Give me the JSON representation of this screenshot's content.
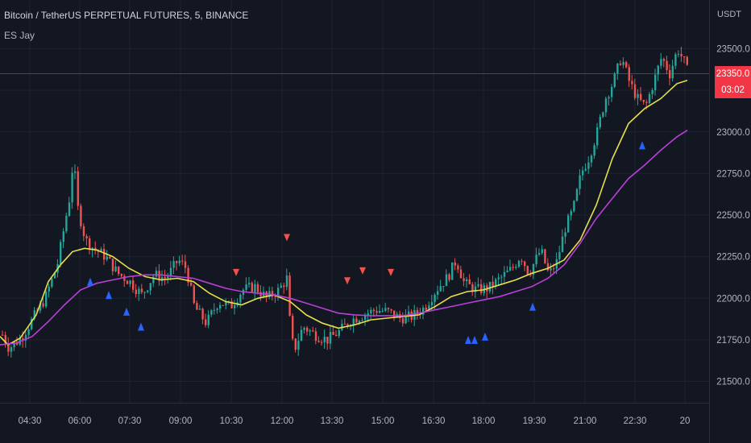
{
  "header": {
    "symbol_line": "Bitcoin / TetherUS PERPETUAL FUTURES, 5, BINANCE",
    "indicator": "ES Jay",
    "unit": "USDT"
  },
  "last_price": {
    "price": "23350.0",
    "countdown": "03:02"
  },
  "colors": {
    "background": "#131722",
    "grid": "#1f2330",
    "up": "#26a69a",
    "down": "#ef5350",
    "fast_ma": "#e8e04a",
    "slow_ma": "#b93fd9",
    "buy": "#2962ff",
    "sell": "#ef5350",
    "price_line": "#f23645"
  },
  "chart_data": {
    "type": "candlestick",
    "y_ticks": [
      "23500.0",
      "23250.0",
      "23000.0",
      "22750.0",
      "22500.0",
      "22250.0",
      "22000.0",
      "21750.0",
      "21500.0"
    ],
    "ylim": [
      21400,
      23600
    ],
    "x_ticks": [
      "04:30",
      "06:00",
      "07:30",
      "09:00",
      "10:30",
      "12:00",
      "13:30",
      "15:00",
      "16:30",
      "18:00",
      "19:30",
      "21:00",
      "22:30",
      "20"
    ],
    "series": [
      {
        "name": "fast",
        "color": "#e8e04a",
        "points": [
          [
            0,
            21770
          ],
          [
            10,
            21720
          ],
          [
            25,
            21760
          ],
          [
            45,
            21900
          ],
          [
            60,
            22100
          ],
          [
            75,
            22200
          ],
          [
            90,
            22280
          ],
          [
            105,
            22300
          ],
          [
            120,
            22290
          ],
          [
            140,
            22250
          ],
          [
            160,
            22180
          ],
          [
            180,
            22130
          ],
          [
            200,
            22110
          ],
          [
            220,
            22120
          ],
          [
            240,
            22100
          ],
          [
            260,
            22030
          ],
          [
            280,
            21980
          ],
          [
            300,
            21960
          ],
          [
            320,
            22000
          ],
          [
            340,
            22020
          ],
          [
            360,
            21980
          ],
          [
            380,
            21900
          ],
          [
            400,
            21850
          ],
          [
            420,
            21820
          ],
          [
            440,
            21840
          ],
          [
            460,
            21870
          ],
          [
            480,
            21880
          ],
          [
            500,
            21890
          ],
          [
            520,
            21900
          ],
          [
            540,
            21950
          ],
          [
            560,
            22010
          ],
          [
            580,
            22040
          ],
          [
            600,
            22050
          ],
          [
            620,
            22080
          ],
          [
            640,
            22110
          ],
          [
            660,
            22150
          ],
          [
            680,
            22180
          ],
          [
            700,
            22230
          ],
          [
            720,
            22350
          ],
          [
            740,
            22560
          ],
          [
            760,
            22840
          ],
          [
            780,
            23050
          ],
          [
            800,
            23140
          ],
          [
            820,
            23200
          ],
          [
            840,
            23290
          ],
          [
            853,
            23310
          ]
        ]
      },
      {
        "name": "slow",
        "color": "#b93fd9",
        "points": [
          [
            0,
            21720
          ],
          [
            20,
            21730
          ],
          [
            40,
            21770
          ],
          [
            60,
            21860
          ],
          [
            80,
            21960
          ],
          [
            100,
            22050
          ],
          [
            120,
            22090
          ],
          [
            140,
            22110
          ],
          [
            160,
            22130
          ],
          [
            180,
            22140
          ],
          [
            200,
            22140
          ],
          [
            220,
            22130
          ],
          [
            240,
            22120
          ],
          [
            260,
            22090
          ],
          [
            280,
            22060
          ],
          [
            300,
            22040
          ],
          [
            320,
            22030
          ],
          [
            340,
            22020
          ],
          [
            360,
            22000
          ],
          [
            380,
            21970
          ],
          [
            400,
            21940
          ],
          [
            420,
            21910
          ],
          [
            440,
            21900
          ],
          [
            460,
            21895
          ],
          [
            480,
            21895
          ],
          [
            500,
            21895
          ],
          [
            520,
            21910
          ],
          [
            540,
            21930
          ],
          [
            560,
            21950
          ],
          [
            580,
            21970
          ],
          [
            600,
            21990
          ],
          [
            620,
            22010
          ],
          [
            640,
            22040
          ],
          [
            660,
            22070
          ],
          [
            680,
            22120
          ],
          [
            700,
            22200
          ],
          [
            720,
            22330
          ],
          [
            740,
            22480
          ],
          [
            760,
            22600
          ],
          [
            780,
            22720
          ],
          [
            800,
            22800
          ],
          [
            820,
            22890
          ],
          [
            840,
            22970
          ],
          [
            853,
            23010
          ]
        ]
      }
    ],
    "buy_signals": [
      [
        112,
        22230
      ],
      [
        135,
        22150
      ],
      [
        157,
        22050
      ],
      [
        175,
        21960
      ],
      [
        581,
        21880
      ],
      [
        589,
        21880
      ],
      [
        602,
        21900
      ],
      [
        661,
        22080
      ],
      [
        797,
        23050
      ]
    ],
    "sell_signals": [
      [
        293,
        22050
      ],
      [
        356,
        22260
      ],
      [
        431,
        22000
      ],
      [
        450,
        22060
      ],
      [
        485,
        22050
      ]
    ],
    "anchors": [
      [
        0,
        21800
      ],
      [
        10,
        21700
      ],
      [
        25,
        21760
      ],
      [
        40,
        21880
      ],
      [
        55,
        22000
      ],
      [
        70,
        22200
      ],
      [
        85,
        22600
      ],
      [
        90,
        22850
      ],
      [
        95,
        22550
      ],
      [
        105,
        22350
      ],
      [
        115,
        22300
      ],
      [
        130,
        22250
      ],
      [
        145,
        22150
      ],
      [
        160,
        22100
      ],
      [
        175,
        22020
      ],
      [
        190,
        22140
      ],
      [
        205,
        22120
      ],
      [
        220,
        22230
      ],
      [
        230,
        22180
      ],
      [
        240,
        21950
      ],
      [
        255,
        21850
      ],
      [
        270,
        21980
      ],
      [
        285,
        21950
      ],
      [
        300,
        22050
      ],
      [
        315,
        22070
      ],
      [
        330,
        22000
      ],
      [
        345,
        22050
      ],
      [
        355,
        22120
      ],
      [
        360,
        21750
      ],
      [
        365,
        21700
      ],
      [
        375,
        21830
      ],
      [
        390,
        21780
      ],
      [
        405,
        21750
      ],
      [
        420,
        21800
      ],
      [
        435,
        21870
      ],
      [
        450,
        21900
      ],
      [
        465,
        21930
      ],
      [
        480,
        21920
      ],
      [
        495,
        21880
      ],
      [
        510,
        21890
      ],
      [
        525,
        21940
      ],
      [
        540,
        22050
      ],
      [
        555,
        22130
      ],
      [
        565,
        22230
      ],
      [
        575,
        22090
      ],
      [
        590,
        22050
      ],
      [
        605,
        22060
      ],
      [
        620,
        22120
      ],
      [
        635,
        22180
      ],
      [
        645,
        22260
      ],
      [
        655,
        22150
      ],
      [
        670,
        22290
      ],
      [
        680,
        22140
      ],
      [
        690,
        22220
      ],
      [
        700,
        22420
      ],
      [
        710,
        22530
      ],
      [
        720,
        22750
      ],
      [
        730,
        22850
      ],
      [
        740,
        23000
      ],
      [
        750,
        23200
      ],
      [
        760,
        23300
      ],
      [
        770,
        23450
      ],
      [
        780,
        23300
      ],
      [
        790,
        23200
      ],
      [
        800,
        23150
      ],
      [
        810,
        23300
      ],
      [
        820,
        23450
      ],
      [
        830,
        23350
      ],
      [
        840,
        23500
      ],
      [
        848,
        23420
      ],
      [
        853,
        23350
      ]
    ],
    "last_price_value": 23350
  }
}
